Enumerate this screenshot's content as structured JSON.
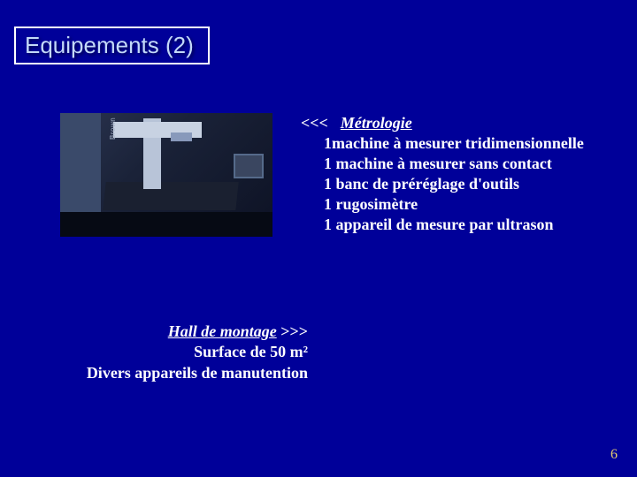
{
  "title": "Equipements (2)",
  "photo": {
    "brand_text": "Brown"
  },
  "metrologie": {
    "arrows": "<<<",
    "heading": "Métrologie",
    "items": [
      "1machine à mesurer tridimensionnelle",
      "1 machine à mesurer sans contact",
      "1 banc de préréglage d'outils",
      "1 rugosimètre",
      "1 appareil de mesure par ultrason"
    ]
  },
  "hall": {
    "heading": "Hall de montage",
    "arrows": ">>>",
    "lines": [
      "Surface de 50 m²",
      "Divers appareils de manutention"
    ]
  },
  "page_number": "6",
  "colors": {
    "background": "#000099",
    "title_text": "#c3d9f9",
    "title_border": "#ffffff",
    "body_text": "#ffffff",
    "page_num": "#e8d070"
  }
}
